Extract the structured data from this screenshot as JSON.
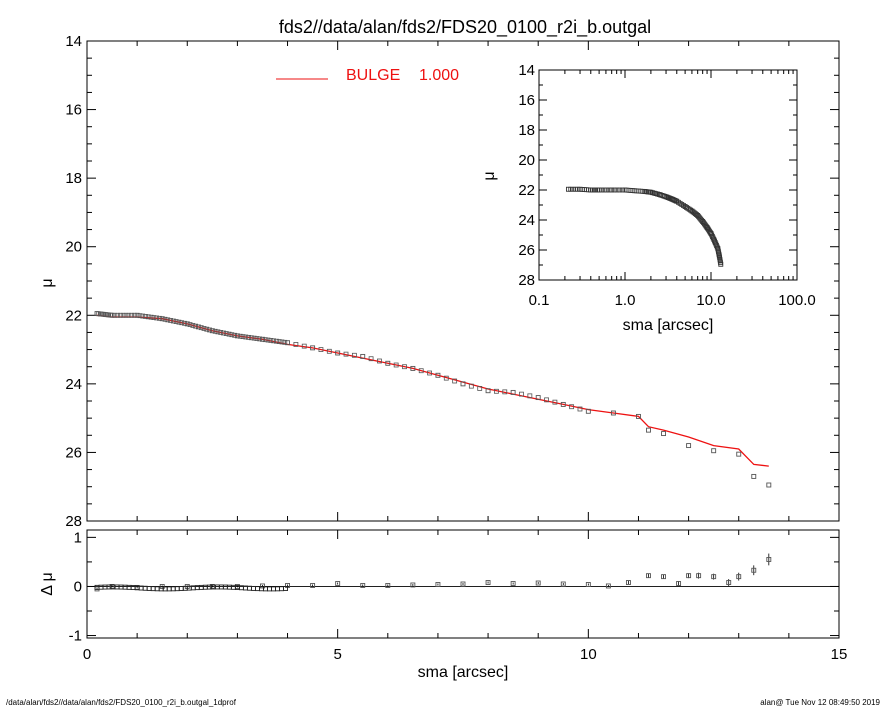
{
  "page": {
    "title": "fds2//data/alan/fds2/FDS20_0100_r2i_b.outgal",
    "footer_left": "/data/alan/fds2//data/alan/fds2/FDS20_0100_r2i_b.outgal_1dprof",
    "footer_right": "alan@  Tue Nov 12 08:49:50 2019"
  },
  "legend": {
    "label": "BULGE",
    "value": "1.000",
    "color": "#ee1111"
  },
  "colors": {
    "model": "#ee1111",
    "data": "#555555",
    "axes": "#000000"
  },
  "chart_data": [
    {
      "id": "main",
      "type": "scatter",
      "xlabel": "sma [arcsec]",
      "ylabel": "μ",
      "xlim": [
        0,
        15
      ],
      "ylim": [
        28,
        14
      ],
      "y_inverted": true,
      "xticks": [
        "0",
        "5",
        "10",
        "15"
      ],
      "yticks": [
        "14",
        "16",
        "18",
        "20",
        "22",
        "24",
        "26",
        "28"
      ],
      "series": [
        {
          "name": "BULGE 1.000",
          "style": "line",
          "x": [
            0.2,
            0.5,
            1.0,
            1.5,
            2.0,
            2.5,
            3.0,
            3.5,
            4.0,
            4.5,
            5.0,
            5.5,
            6.0,
            6.5,
            7.0,
            7.5,
            8.0,
            8.5,
            9.0,
            9.5,
            10.0,
            10.5,
            11.0,
            11.2,
            11.5,
            12.0,
            12.5,
            13.0,
            13.3,
            13.6
          ],
          "y": [
            22.0,
            22.05,
            22.05,
            22.1,
            22.25,
            22.45,
            22.6,
            22.7,
            22.85,
            22.95,
            23.1,
            23.25,
            23.4,
            23.55,
            23.75,
            23.95,
            24.15,
            24.3,
            24.45,
            24.6,
            24.75,
            24.85,
            24.95,
            25.25,
            25.35,
            25.55,
            25.8,
            25.9,
            26.35,
            26.4
          ]
        },
        {
          "name": "data",
          "style": "markers",
          "x": [
            0.2,
            0.5,
            1.0,
            1.5,
            2.0,
            2.5,
            3.0,
            3.5,
            4.0,
            4.5,
            5.0,
            5.5,
            6.0,
            6.5,
            7.0,
            7.5,
            8.0,
            8.5,
            9.0,
            9.5,
            10.0,
            10.5,
            11.0,
            11.2,
            11.5,
            12.0,
            12.5,
            13.0,
            13.3,
            13.6
          ],
          "y": [
            21.95,
            22.0,
            22.0,
            22.1,
            22.25,
            22.45,
            22.6,
            22.7,
            22.8,
            22.95,
            23.1,
            23.2,
            23.4,
            23.55,
            23.75,
            24.0,
            24.2,
            24.25,
            24.4,
            24.6,
            24.8,
            24.85,
            24.95,
            25.35,
            25.45,
            25.8,
            25.95,
            26.05,
            26.7,
            26.95
          ]
        }
      ]
    },
    {
      "id": "residual",
      "type": "scatter",
      "xlabel": "sma [arcsec]",
      "ylabel": "Δ μ",
      "xlim": [
        0,
        15
      ],
      "ylim": [
        -1.05,
        1.15
      ],
      "xticks": [
        "0",
        "5",
        "10",
        "15"
      ],
      "yticks": [
        "1",
        "0",
        "-1"
      ],
      "zero_line": true,
      "series": [
        {
          "name": "residual",
          "style": "markers_with_errorbars",
          "x": [
            0.2,
            0.5,
            1.0,
            1.5,
            2.0,
            2.5,
            3.0,
            3.5,
            4.0,
            4.5,
            5.0,
            5.5,
            6.0,
            6.5,
            7.0,
            7.5,
            8.0,
            8.5,
            9.0,
            9.5,
            10.0,
            10.4,
            10.8,
            11.2,
            11.5,
            11.8,
            12.0,
            12.2,
            12.5,
            12.8,
            13.0,
            13.3,
            13.6
          ],
          "y": [
            -0.05,
            0.0,
            -0.02,
            0.0,
            0.0,
            0.0,
            0.0,
            0.01,
            0.02,
            0.02,
            0.06,
            0.02,
            0.02,
            0.03,
            0.04,
            0.05,
            0.08,
            0.06,
            0.07,
            0.05,
            0.04,
            0.01,
            0.08,
            0.22,
            0.2,
            0.06,
            0.22,
            0.22,
            0.2,
            0.08,
            0.2,
            0.33,
            0.55
          ],
          "err": [
            0.02,
            0.02,
            0.02,
            0.02,
            0.02,
            0.02,
            0.02,
            0.02,
            0.02,
            0.02,
            0.02,
            0.02,
            0.02,
            0.02,
            0.02,
            0.02,
            0.02,
            0.02,
            0.02,
            0.02,
            0.02,
            0.02,
            0.03,
            0.04,
            0.04,
            0.05,
            0.05,
            0.06,
            0.06,
            0.07,
            0.08,
            0.1,
            0.12
          ]
        }
      ]
    },
    {
      "id": "inset",
      "type": "scatter",
      "xlabel": "sma [arcsec]",
      "ylabel": "μ",
      "xscale": "log",
      "xlim": [
        0.1,
        100.0
      ],
      "ylim": [
        28,
        14
      ],
      "y_inverted": true,
      "xticks": [
        "0.1",
        "1.0",
        "10.0",
        "100.0"
      ],
      "yticks": [
        "14",
        "16",
        "18",
        "20",
        "22",
        "24",
        "26",
        "28"
      ],
      "series": [
        {
          "name": "data",
          "style": "markers",
          "x": [
            0.22,
            0.3,
            0.4,
            0.5,
            0.7,
            1.0,
            1.3,
            1.7,
            2.0,
            2.5,
            3.0,
            3.5,
            4.0,
            5.0,
            6.0,
            7.0,
            8.0,
            9.0,
            10.0,
            11.0,
            12.0,
            12.5,
            13.0
          ],
          "y": [
            21.95,
            21.95,
            22.0,
            22.0,
            22.0,
            22.0,
            22.05,
            22.1,
            22.15,
            22.3,
            22.45,
            22.6,
            22.75,
            23.1,
            23.4,
            23.7,
            24.1,
            24.5,
            24.9,
            25.4,
            25.9,
            26.4,
            26.95
          ]
        }
      ]
    }
  ]
}
